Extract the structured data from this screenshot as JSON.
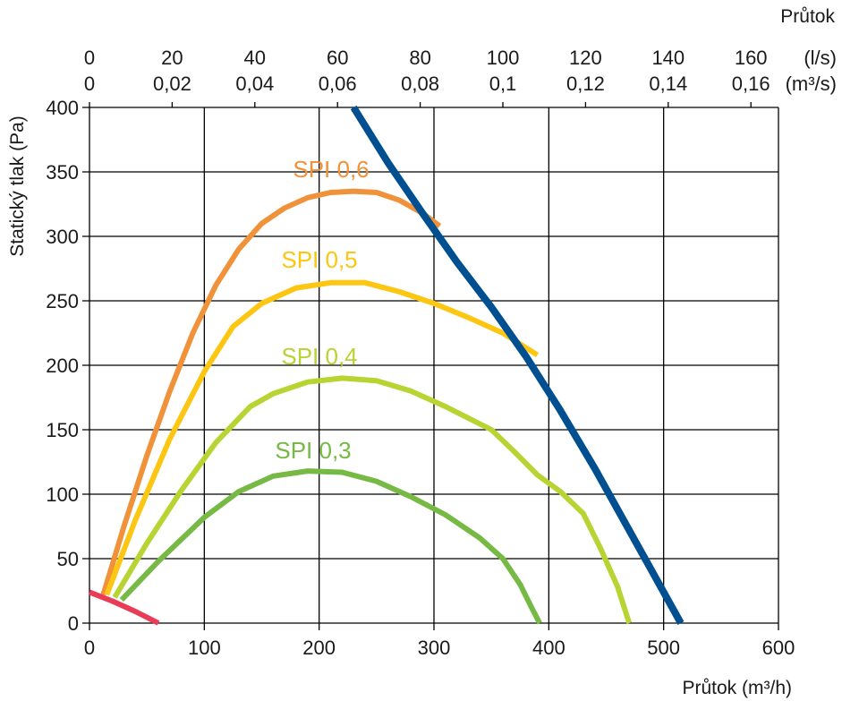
{
  "chart_data": {
    "type": "line",
    "xlabel": "Průtok (m³/h)",
    "ylabel": "Statický tlak (Pa)",
    "xlim": [
      0,
      600
    ],
    "ylim": [
      0,
      400
    ],
    "x_ticks": [
      "0",
      "100",
      "200",
      "300",
      "400",
      "500",
      "600"
    ],
    "y_ticks": [
      "0",
      "50",
      "100",
      "150",
      "200",
      "250",
      "300",
      "350",
      "400"
    ],
    "grid": true,
    "top_axis": {
      "title": "Průtok",
      "unit_ls": "(l/s)",
      "unit_m3s": "(m³/s)",
      "ticks_ls": [
        "0",
        "20",
        "40",
        "60",
        "80",
        "100",
        "120",
        "140",
        "160"
      ],
      "ticks_m3s": [
        "0",
        "0,02",
        "0,04",
        "0,06",
        "0,08",
        "0,1",
        "0,12",
        "0,14",
        "0,16"
      ],
      "tick_values_m3h": [
        0,
        72,
        144,
        216,
        288,
        360,
        432,
        504,
        576
      ]
    },
    "series": [
      {
        "name": "SPI 0,6",
        "color": "#f0923a",
        "x": [
          12,
          30,
          50,
          70,
          90,
          110,
          130,
          150,
          170,
          190,
          210,
          230,
          250,
          270,
          290,
          305
        ],
        "y": [
          22,
          75,
          130,
          180,
          225,
          262,
          290,
          310,
          322,
          330,
          334,
          335,
          334,
          328,
          318,
          308
        ]
      },
      {
        "name": "SPI 0,5",
        "color": "#fcc612",
        "x": [
          15,
          40,
          70,
          100,
          125,
          150,
          180,
          210,
          240,
          270,
          300,
          330,
          360,
          390
        ],
        "y": [
          22,
          80,
          143,
          195,
          230,
          248,
          260,
          264,
          264,
          257,
          248,
          237,
          225,
          208
        ]
      },
      {
        "name": "SPI 0,4",
        "color": "#b8d433",
        "x": [
          22,
          50,
          80,
          110,
          140,
          160,
          190,
          220,
          250,
          280,
          310,
          350,
          370,
          390,
          410,
          430,
          445,
          460,
          470
        ],
        "y": [
          20,
          62,
          103,
          140,
          168,
          178,
          187,
          190,
          188,
          180,
          168,
          150,
          133,
          115,
          102,
          85,
          58,
          28,
          0
        ]
      },
      {
        "name": "SPI 0,3",
        "color": "#76b944",
        "x": [
          28,
          60,
          100,
          130,
          160,
          190,
          220,
          250,
          280,
          310,
          340,
          360,
          375,
          385,
          392
        ],
        "y": [
          18,
          48,
          82,
          102,
          114,
          118,
          117,
          110,
          98,
          84,
          66,
          50,
          30,
          12,
          0
        ]
      },
      {
        "name": "",
        "color": "#004f91",
        "x": [
          230,
          260,
          290,
          320,
          350,
          380,
          410,
          440,
          470,
          495,
          515
        ],
        "y": [
          400,
          357,
          318,
          280,
          245,
          207,
          165,
          120,
          72,
          32,
          0
        ]
      },
      {
        "name": "",
        "color": "#e83c57",
        "x": [
          0,
          20,
          40,
          60
        ],
        "y": [
          24,
          17,
          9,
          0
        ]
      }
    ]
  }
}
